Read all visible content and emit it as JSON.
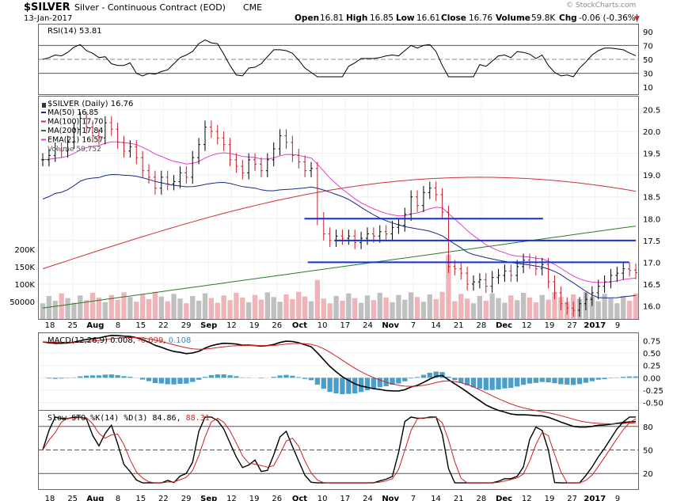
{
  "header": {
    "ticker": "$SILVER",
    "description": "Silver - Continuous Contract (EOD)",
    "exchange": "CME",
    "date": "13-Jan-2017",
    "open_label": "Open",
    "open": "16.81",
    "high_label": "High",
    "high": "16.85",
    "low_label": "Low",
    "low": "16.61",
    "close_label": "Close",
    "close": "16.76",
    "volume_label": "Volume",
    "volume": "59.8K",
    "chg_label": "Chg",
    "chg": "-0.06 (-0.36%)",
    "watermark": "© StockCharts.com"
  },
  "colors": {
    "ma50": "#1a2a8a",
    "ma100": "#d0303a",
    "ma200": "#2a7a2a",
    "ema21": "#e040c8",
    "up": "#000000",
    "down": "#c0202a",
    "vol_up": "#c0c0c0",
    "vol_down": "#f0b4b8",
    "hline": "#1530d8",
    "macd_hist": "#4a9ec8",
    "accent_red": "#c03030"
  },
  "rsi": {
    "label": "RSI(14)",
    "value": "53.81",
    "ticks": [
      "90",
      "70",
      "50",
      "30",
      "10"
    ]
  },
  "price": {
    "title": "$SILVER (Daily)",
    "value": "16.76",
    "legend": [
      {
        "label": "MA(50)",
        "value": "16.85",
        "color_key": "ma50"
      },
      {
        "label": "MA(100)",
        "value": "17.70",
        "color_key": "ma100"
      },
      {
        "label": "MA(200)",
        "value": "17.84",
        "color_key": "ma200"
      },
      {
        "label": "EMA(21)",
        "value": "16.57",
        "color_key": "ema21"
      }
    ],
    "volume_label": "Volume",
    "volume_value": "59,752",
    "yticks": [
      "20.5",
      "20.0",
      "19.5",
      "19.0",
      "18.5",
      "18.0",
      "17.5",
      "17.0",
      "16.5",
      "16.0"
    ],
    "vol_ticks": [
      "200K",
      "150K",
      "100K",
      "50000"
    ]
  },
  "macd": {
    "label": "MACD(12,26,9)",
    "v1": "0.008",
    "v2": "-0.099",
    "v3": "0.108",
    "ticks": [
      "0.75",
      "0.50",
      "0.25",
      "0.00",
      "-0.25",
      "-0.50"
    ]
  },
  "sto": {
    "label": "Slow STO %K(14) %D(3)",
    "k": "84.86",
    "d": "88.31",
    "ticks": [
      "80",
      "50",
      "20"
    ]
  },
  "xaxis": {
    "labels": [
      {
        "t": "18",
        "bold": false
      },
      {
        "t": "25",
        "bold": false
      },
      {
        "t": "Aug",
        "bold": true
      },
      {
        "t": "8",
        "bold": false
      },
      {
        "t": "15",
        "bold": false
      },
      {
        "t": "22",
        "bold": false
      },
      {
        "t": "29",
        "bold": false
      },
      {
        "t": "Sep",
        "bold": true
      },
      {
        "t": "12",
        "bold": false
      },
      {
        "t": "19",
        "bold": false
      },
      {
        "t": "26",
        "bold": false
      },
      {
        "t": "Oct",
        "bold": true
      },
      {
        "t": "10",
        "bold": false
      },
      {
        "t": "17",
        "bold": false
      },
      {
        "t": "24",
        "bold": false
      },
      {
        "t": "Nov",
        "bold": true
      },
      {
        "t": "7",
        "bold": false
      },
      {
        "t": "14",
        "bold": false
      },
      {
        "t": "21",
        "bold": false
      },
      {
        "t": "28",
        "bold": false
      },
      {
        "t": "Dec",
        "bold": true
      },
      {
        "t": "12",
        "bold": false
      },
      {
        "t": "19",
        "bold": false
      },
      {
        "t": "27",
        "bold": false
      },
      {
        "t": "2017",
        "bold": true
      },
      {
        "t": "9",
        "bold": false
      }
    ]
  },
  "chart_data": {
    "type": "candlestick",
    "title": "$SILVER Silver - Continuous Contract (EOD) CME",
    "x_start": "2016-07-18",
    "x_end": "2017-01-13",
    "price_ylim": [
      15.7,
      20.8
    ],
    "price_ohlc_daily_close": [
      19.35,
      19.45,
      19.6,
      19.55,
      19.75,
      20.05,
      20.3,
      20.1,
      19.9,
      19.85,
      20.2,
      20.05,
      19.75,
      19.55,
      19.65,
      19.4,
      19.1,
      18.95,
      18.7,
      18.95,
      18.8,
      18.85,
      19.05,
      18.95,
      19.4,
      19.7,
      20.1,
      20.0,
      19.85,
      19.7,
      19.35,
      19.2,
      19.05,
      19.35,
      19.25,
      19.1,
      19.35,
      19.6,
      19.9,
      19.75,
      19.45,
      19.3,
      19.1,
      19.15,
      18.0,
      17.65,
      17.5,
      17.6,
      17.55,
      17.6,
      17.45,
      17.55,
      17.65,
      17.6,
      17.7,
      17.65,
      17.8,
      17.85,
      18.1,
      18.5,
      18.3,
      18.6,
      18.7,
      18.55,
      18.15,
      16.9,
      16.85,
      16.75,
      16.5,
      16.55,
      16.6,
      16.45,
      16.65,
      16.7,
      16.8,
      16.7,
      16.9,
      17.05,
      17.0,
      16.85,
      16.95,
      16.55,
      16.3,
      16.05,
      15.95,
      15.9,
      16.05,
      16.15,
      16.3,
      16.45,
      16.55,
      16.7,
      16.75,
      16.85,
      16.82,
      16.76
    ],
    "horizontal_lines": [
      {
        "price": 18.0,
        "from": "2016-10-05",
        "to": "2016-12-16"
      },
      {
        "price": 17.5,
        "from": "2016-10-14",
        "to": "2017-01-13"
      },
      {
        "price": 17.0,
        "from": "2016-10-06",
        "to": "2017-01-11"
      }
    ],
    "indicators": {
      "RSI(14)": 53.81,
      "MA(50)": 16.85,
      "MA(100)": 17.7,
      "MA(200)": 17.84,
      "EMA(21)": 16.57,
      "MACD(12,26,9)": [
        0.008,
        -0.099,
        0.108
      ],
      "Slow STO %K(14) %D(3)": [
        84.86,
        88.31
      ]
    },
    "volume_ylim": [
      0,
      250000
    ],
    "rsi_ylim": [
      0,
      100
    ],
    "macd_ylim": [
      -0.65,
      0.9
    ],
    "sto_ylim": [
      0,
      100
    ]
  }
}
